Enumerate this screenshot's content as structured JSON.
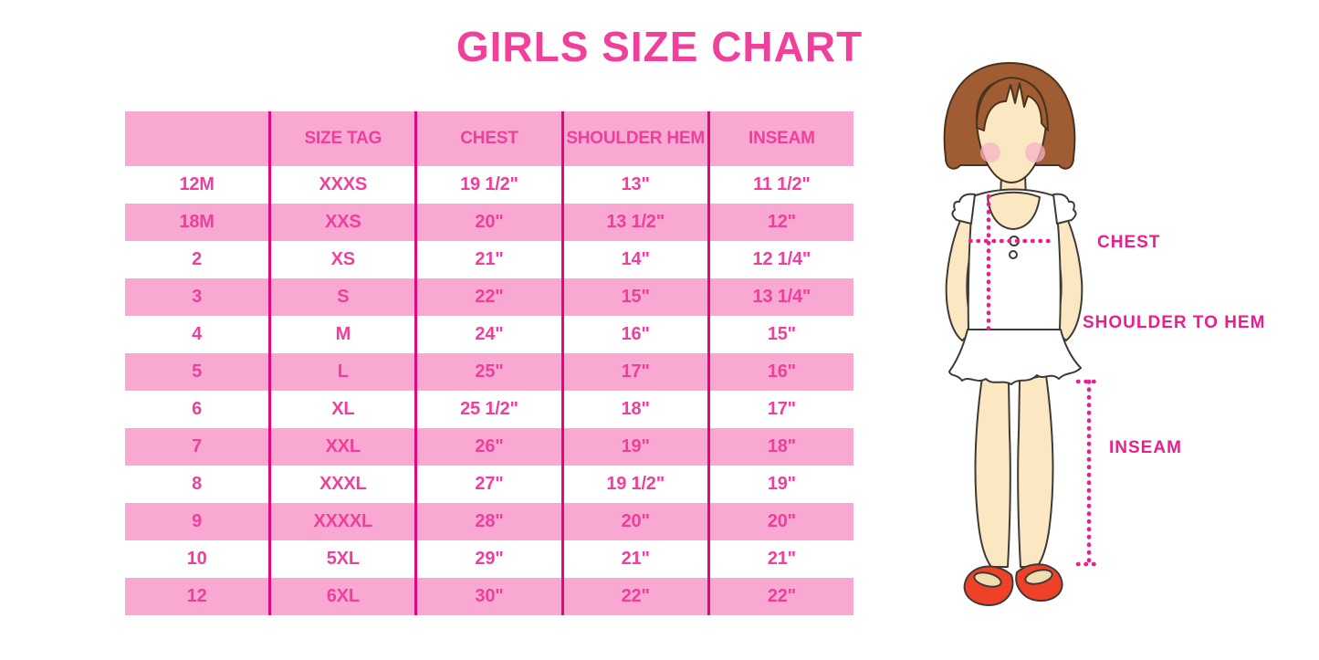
{
  "title": "GIRLS SIZE CHART",
  "chart_data": {
    "type": "table",
    "title": "GIRLS SIZE CHART",
    "columns": [
      "",
      "SIZE TAG",
      "CHEST",
      "SHOULDER HEM",
      "INSEAM"
    ],
    "rows": [
      [
        "12M",
        "XXXS",
        "19 1/2\"",
        "13\"",
        "11 1/2\""
      ],
      [
        "18M",
        "XXS",
        "20\"",
        "13 1/2\"",
        "12\""
      ],
      [
        "2",
        "XS",
        "21\"",
        "14\"",
        "12 1/4\""
      ],
      [
        "3",
        "S",
        "22\"",
        "15\"",
        "13 1/4\""
      ],
      [
        "4",
        "M",
        "24\"",
        "16\"",
        "15\""
      ],
      [
        "5",
        "L",
        "25\"",
        "17\"",
        "16\""
      ],
      [
        "6",
        "XL",
        "25 1/2\"",
        "18\"",
        "17\""
      ],
      [
        "7",
        "XXL",
        "26\"",
        "19\"",
        "18\""
      ],
      [
        "8",
        "XXXL",
        "27\"",
        "19 1/2\"",
        "19\""
      ],
      [
        "9",
        "XXXXL",
        "28\"",
        "20\"",
        "20\""
      ],
      [
        "10",
        "5XL",
        "29\"",
        "21\"",
        "21\""
      ],
      [
        "12",
        "6XL",
        "30\"",
        "22\"",
        "22\""
      ]
    ]
  },
  "diagram": {
    "labels": {
      "chest": "CHEST",
      "shoulder_to_hem": "SHOULDER TO HEM",
      "inseam": "INSEAM"
    }
  },
  "colors": {
    "title_pink": "#F13F9C",
    "row_pink": "#F9A8D2",
    "cell_text_pink": "#EF3F9C",
    "divider_magenta": "#E5057F",
    "label_magenta": "#EC1E8E",
    "dot_magenta": "#EC1E8E",
    "hair_brown": "#A05C33",
    "hair_stroke": "#4A331F",
    "skin": "#FBE7C2",
    "outline": "#3F3A35",
    "blush": "#F4B3C6",
    "shoe_red": "#EF4128",
    "sole_tan": "#F2DCB2"
  }
}
